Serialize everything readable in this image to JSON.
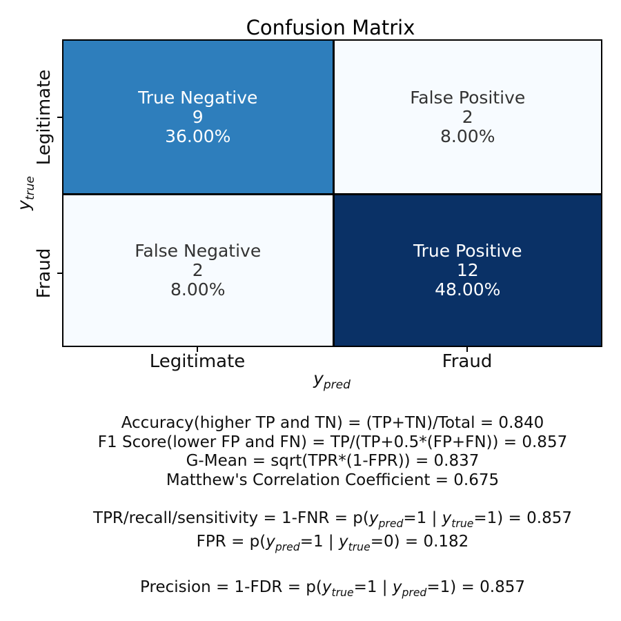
{
  "chart_data": {
    "type": "heatmap",
    "title": "Confusion Matrix",
    "xlabel": "y_pred",
    "ylabel": "y_true",
    "x_categories": [
      "Legitimate",
      "Fraud"
    ],
    "y_categories": [
      "Legitimate",
      "Fraud"
    ],
    "values": [
      [
        9,
        2
      ],
      [
        2,
        12
      ]
    ],
    "percentages": [
      [
        36.0,
        8.0
      ],
      [
        8.0,
        48.0
      ]
    ],
    "colormap": "Blues",
    "cells": [
      {
        "name": "true-negative",
        "label": "True Negative",
        "count": 9,
        "percent": "36.00%",
        "bg": "#2e7ebc",
        "fg": "#ffffff"
      },
      {
        "name": "false-positive",
        "label": "False Positive",
        "count": 2,
        "percent": "8.00%",
        "bg": "#f7fbff",
        "fg": "#333333"
      },
      {
        "name": "false-negative",
        "label": "False Negative",
        "count": 2,
        "percent": "8.00%",
        "bg": "#f7fbff",
        "fg": "#333333"
      },
      {
        "name": "true-positive",
        "label": "True Positive",
        "count": 12,
        "percent": "48.00%",
        "bg": "#0a3166",
        "fg": "#ffffff"
      }
    ],
    "metrics": [
      "Accuracy(higher TP and TN) = (TP+TN)/Total = 0.840",
      "F1 Score(lower FP and FN) = TP/(TP+0.5*(FP+FN)) = 0.857",
      "G-Mean = sqrt(TPR*(1-FPR)) = 0.837",
      "Matthew's Correlation Coefficient = 0.675"
    ],
    "rate_metrics": [
      "TPR/recall/sensitivity = 1-FNR = p(y_pred=1 | y_true=1) = 0.857",
      "FPR = p(y_pred=1 | y_true=0) = 0.182"
    ],
    "precision_metric": "Precision = 1-FDR = p(y_true=1 | y_pred=1) = 0.857",
    "axis_spine_color": "#000000",
    "background_color": "#ffffff"
  }
}
